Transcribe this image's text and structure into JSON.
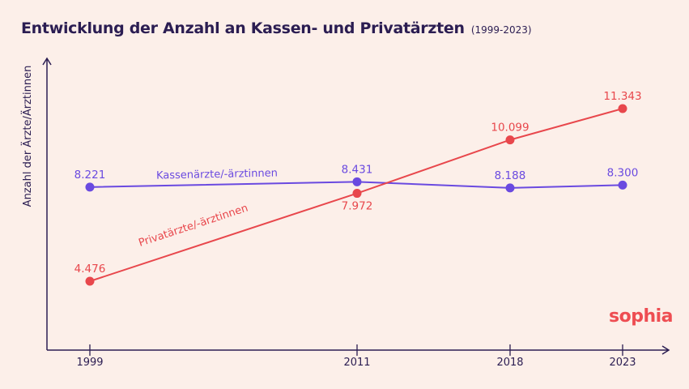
{
  "header": {
    "title": "Entwicklung der Anzahl an Kassen- und Privatärzten",
    "subtitle": "(1999-2023)"
  },
  "brand": {
    "logo_text": "sophia"
  },
  "chart_data": {
    "type": "line",
    "ylabel": "Anzahl der Ärzte/Ärztinnen",
    "xlabel": "",
    "x": [
      1999,
      2011,
      2018,
      2023
    ],
    "xticks": [
      "1999",
      "2011",
      "2018",
      "2023"
    ],
    "ylim": [
      2000,
      12500
    ],
    "grid": false,
    "legend": "inline labels on lines",
    "series": [
      {
        "name": "Kassenärzte/-ärztinnen",
        "color": "#6a4ae0",
        "values": [
          8221,
          8431,
          8188,
          8300
        ],
        "labels": [
          "8.221",
          "8.431",
          "8.188",
          "8.300"
        ]
      },
      {
        "name": "Privatärzte/-ärztinnen",
        "color": "#e8474c",
        "values": [
          4476,
          7972,
          10099,
          11343
        ],
        "labels": [
          "4.476",
          "7.972",
          "10.099",
          "11.343"
        ]
      }
    ]
  }
}
